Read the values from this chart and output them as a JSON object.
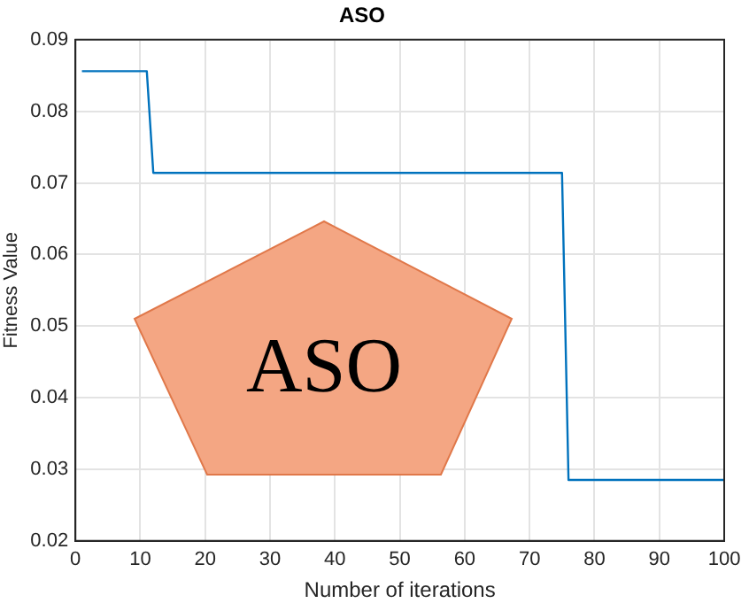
{
  "chart_data": {
    "type": "line",
    "title": "ASO",
    "xlabel": "Number of iterations",
    "ylabel": "Fitness Value",
    "series": [
      {
        "color": "#0072bd",
        "x": [
          1,
          11,
          12,
          75,
          76,
          100
        ],
        "values": [
          0.0856,
          0.0856,
          0.0714,
          0.0714,
          0.0285,
          0.0285
        ]
      }
    ],
    "xlim": [
      0,
      100
    ],
    "xticks": [
      0,
      10,
      20,
      30,
      40,
      50,
      60,
      70,
      80,
      90,
      100
    ],
    "ylim": [
      0.02,
      0.09
    ],
    "yticks": [
      0.02,
      0.03,
      0.04,
      0.05,
      0.06,
      0.07,
      0.08,
      0.09
    ],
    "grid": true,
    "legend": false,
    "marker": "none",
    "line_style": "solid",
    "annotations": [
      "ASO"
    ]
  }
}
